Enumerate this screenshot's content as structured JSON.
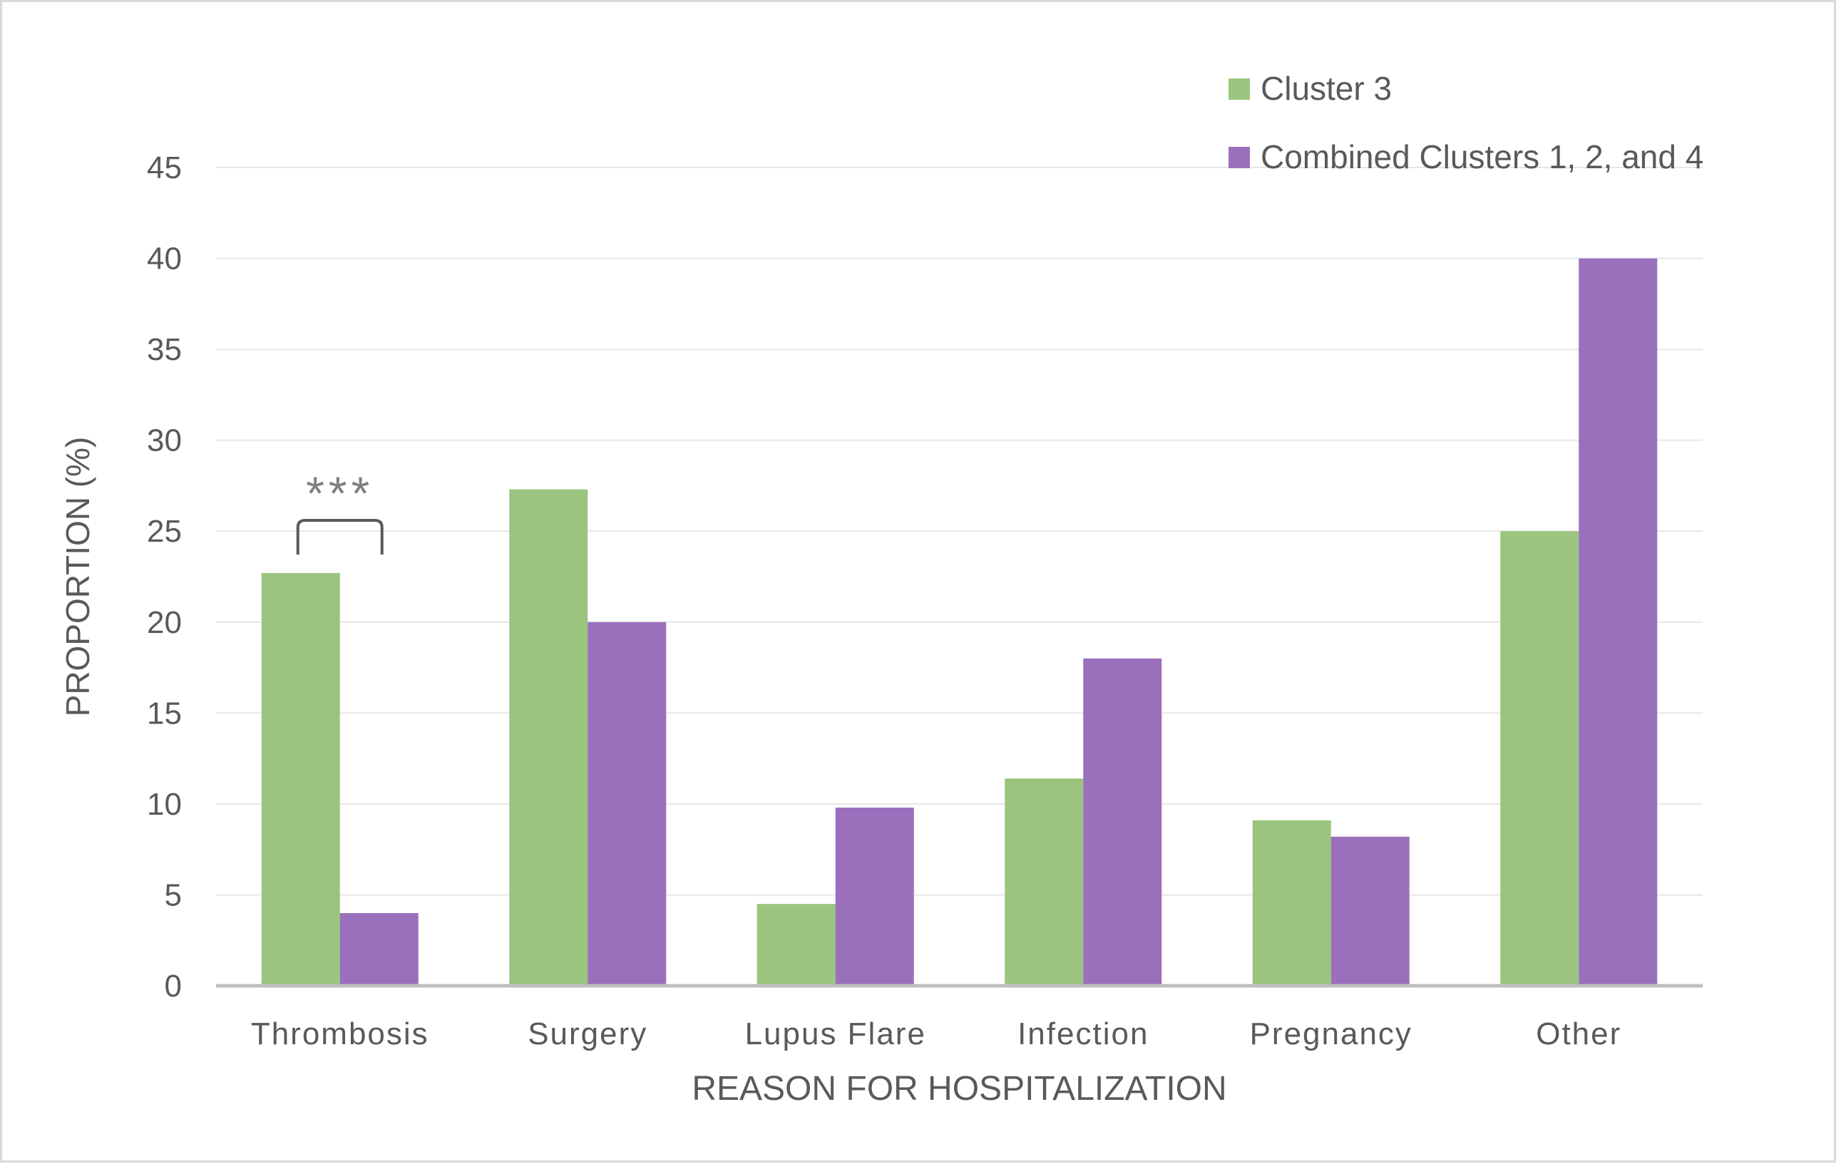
{
  "chart_data": {
    "type": "bar",
    "title": "",
    "xlabel": "REASON FOR HOSPITALIZATION",
    "ylabel": "PROPORTION (%)",
    "ylim": [
      0,
      45
    ],
    "yticks": [
      0,
      5,
      10,
      15,
      20,
      25,
      30,
      35,
      40,
      45
    ],
    "grid": true,
    "legend_position": "top-right",
    "categories": [
      "Thrombosis",
      "Surgery",
      "Lupus Flare",
      "Infection",
      "Pregnancy",
      "Other"
    ],
    "series": [
      {
        "name": "Cluster 3",
        "color": "#9bc47e",
        "values": [
          22.7,
          27.3,
          4.5,
          11.4,
          9.1,
          25.0
        ]
      },
      {
        "name": "Combined Clusters 1, 2, and 4",
        "color": "#9a70bc",
        "values": [
          4.0,
          20.0,
          9.8,
          18.0,
          8.2,
          40.0
        ]
      }
    ],
    "annotations": [
      {
        "text": "***",
        "category": "Thrombosis",
        "type": "significance-bracket"
      }
    ]
  }
}
